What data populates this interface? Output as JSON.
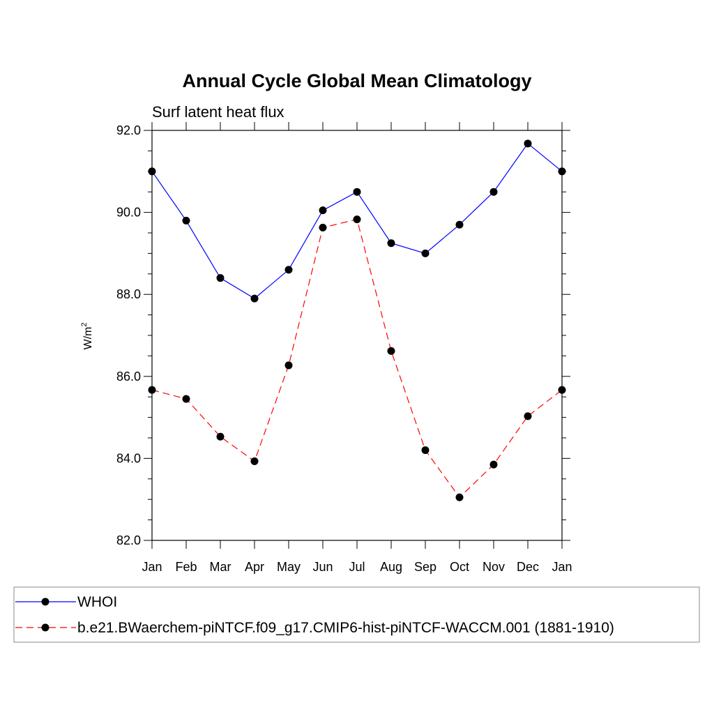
{
  "chart_data": {
    "type": "line",
    "title": "Annual Cycle Global Mean Climatology",
    "subtitle": "Surf latent heat flux",
    "ylabel": "W/m",
    "ylabel_sup": "2",
    "categories": [
      "Jan",
      "Feb",
      "Mar",
      "Apr",
      "May",
      "Jun",
      "Jul",
      "Aug",
      "Sep",
      "Oct",
      "Nov",
      "Dec",
      "Jan"
    ],
    "ylim": [
      82.0,
      92.0
    ],
    "yticks": [
      "82.0",
      "84.0",
      "86.0",
      "88.0",
      "90.0",
      "92.0"
    ],
    "series": [
      {
        "name": "WHOI",
        "color": "#0000ff",
        "dash": "solid",
        "values": [
          91.0,
          89.8,
          88.4,
          87.9,
          88.6,
          90.05,
          90.5,
          89.25,
          89.0,
          89.7,
          90.5,
          91.68,
          91.0
        ]
      },
      {
        "name": "b.e21.BWaerchem-piNTCF.f09_g17.CMIP6-hist-piNTCF-WACCM.001 (1881-1910)",
        "color": "#ff0000",
        "dash": "dashed",
        "values": [
          85.67,
          85.45,
          84.53,
          83.93,
          86.27,
          89.63,
          89.83,
          86.62,
          84.2,
          83.05,
          83.85,
          85.03,
          85.67
        ]
      }
    ]
  }
}
